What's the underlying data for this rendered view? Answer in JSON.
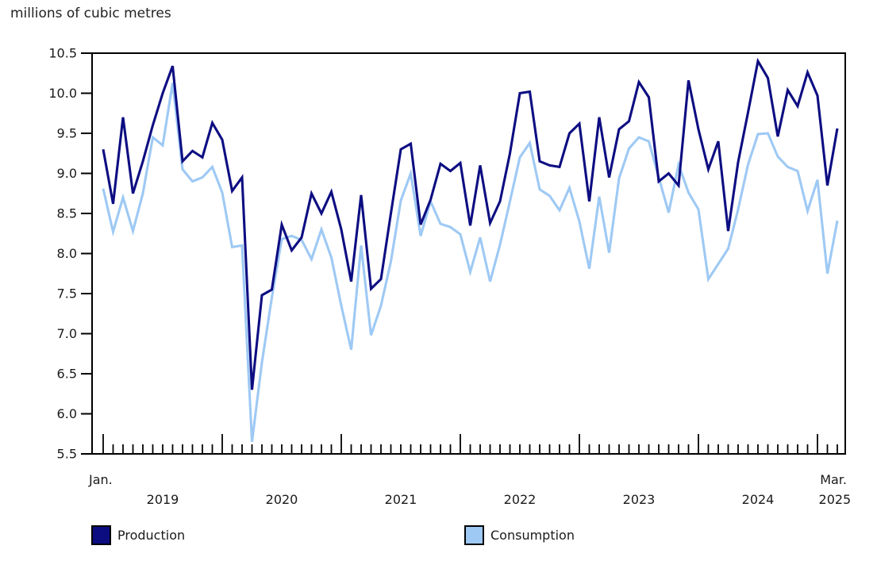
{
  "chart_data": {
    "type": "line",
    "title": "millions of cubic metres",
    "x_first_tick_label": "Jan.",
    "x_last_tick_label": "Mar.",
    "year_labels": [
      "2019",
      "2020",
      "2021",
      "2022",
      "2023",
      "2024",
      "2025"
    ],
    "ylim": [
      5.5,
      10.5
    ],
    "ytick_step": 0.5,
    "yticks": [
      10.5,
      10.0,
      9.5,
      9.0,
      8.5,
      8.0,
      7.5,
      7.0,
      6.5,
      6.0,
      5.5
    ],
    "grid": false,
    "legend_position": "bottom",
    "axis_color": "#000000",
    "text_color": "#1a1a1a",
    "categories": [
      "2019-01",
      "2019-02",
      "2019-03",
      "2019-04",
      "2019-05",
      "2019-06",
      "2019-07",
      "2019-08",
      "2019-09",
      "2019-10",
      "2019-11",
      "2019-12",
      "2020-01",
      "2020-02",
      "2020-03",
      "2020-04",
      "2020-05",
      "2020-06",
      "2020-07",
      "2020-08",
      "2020-09",
      "2020-10",
      "2020-11",
      "2020-12",
      "2021-01",
      "2021-02",
      "2021-03",
      "2021-04",
      "2021-05",
      "2021-06",
      "2021-07",
      "2021-08",
      "2021-09",
      "2021-10",
      "2021-11",
      "2021-12",
      "2022-01",
      "2022-02",
      "2022-03",
      "2022-04",
      "2022-05",
      "2022-06",
      "2022-07",
      "2022-08",
      "2022-09",
      "2022-10",
      "2022-11",
      "2022-12",
      "2023-01",
      "2023-02",
      "2023-03",
      "2023-04",
      "2023-05",
      "2023-06",
      "2023-07",
      "2023-08",
      "2023-09",
      "2023-10",
      "2023-11",
      "2023-12",
      "2024-01",
      "2024-02",
      "2024-03",
      "2024-04",
      "2024-05",
      "2024-06",
      "2024-07",
      "2024-08",
      "2024-09",
      "2024-10",
      "2024-11",
      "2024-12",
      "2025-01",
      "2025-02",
      "2025-03"
    ],
    "series": [
      {
        "name": "Production",
        "color": "#0d0d82",
        "values": [
          9.3,
          8.62,
          9.7,
          8.75,
          9.15,
          9.6,
          10.0,
          10.34,
          9.15,
          9.28,
          9.2,
          9.63,
          9.42,
          8.78,
          8.95,
          6.3,
          7.48,
          7.55,
          8.36,
          8.04,
          8.2,
          8.75,
          8.5,
          8.77,
          8.3,
          7.65,
          8.73,
          7.56,
          7.68,
          8.5,
          9.3,
          9.37,
          8.36,
          8.67,
          9.12,
          9.03,
          9.13,
          8.35,
          9.1,
          8.38,
          8.65,
          9.25,
          10.0,
          10.02,
          9.15,
          9.1,
          9.08,
          9.5,
          9.62,
          8.65,
          9.7,
          8.95,
          9.55,
          9.65,
          10.14,
          9.95,
          8.9,
          9.0,
          8.85,
          10.16,
          9.55,
          9.05,
          9.4,
          8.28,
          9.14,
          9.76,
          10.4,
          10.19,
          9.46,
          10.04,
          9.84,
          10.26,
          9.97,
          8.85,
          9.56
        ]
      },
      {
        "name": "Consumption",
        "color": "#9ec9f4",
        "values": [
          8.81,
          8.27,
          8.7,
          8.28,
          8.75,
          9.45,
          9.35,
          10.13,
          9.05,
          8.9,
          8.95,
          9.08,
          8.76,
          8.08,
          8.1,
          5.65,
          6.64,
          7.45,
          8.18,
          8.22,
          8.17,
          7.93,
          8.3,
          7.95,
          7.35,
          6.8,
          8.1,
          6.98,
          7.35,
          7.9,
          8.66,
          9.0,
          8.22,
          8.65,
          8.37,
          8.33,
          8.24,
          7.77,
          8.2,
          7.65,
          8.11,
          8.65,
          9.2,
          9.38,
          8.8,
          8.72,
          8.54,
          8.82,
          8.4,
          7.81,
          8.71,
          8.01,
          8.94,
          9.31,
          9.45,
          9.4,
          8.95,
          8.51,
          9.11,
          8.76,
          8.55,
          7.68,
          7.87,
          8.06,
          8.55,
          9.11,
          9.49,
          9.5,
          9.21,
          9.08,
          9.03,
          8.53,
          8.92,
          7.75,
          8.41
        ]
      }
    ]
  }
}
